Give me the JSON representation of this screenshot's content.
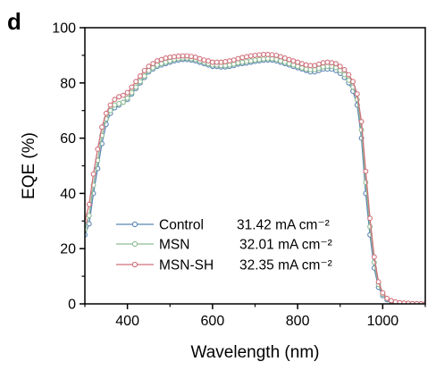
{
  "panel_label": "d",
  "colors": {
    "control": "#5b86b5",
    "msn": "#8fbc93",
    "msn_sh": "#d0707a"
  },
  "chart_data": {
    "type": "line",
    "xlabel": "Wavelength (nm)",
    "ylabel": "EQE (%)",
    "xlim": [
      300,
      1100
    ],
    "ylim": [
      0,
      100
    ],
    "xticks": [
      400,
      600,
      800,
      1000
    ],
    "yticks": [
      0,
      20,
      40,
      60,
      80,
      100
    ],
    "grid": false,
    "legend_position": "bottom-center",
    "series": [
      {
        "name": "Control",
        "annotation": "31.42 mA cm⁻²",
        "color": "#5b86b5",
        "x": [
          300,
          310,
          320,
          330,
          340,
          350,
          360,
          370,
          380,
          390,
          400,
          410,
          420,
          430,
          440,
          450,
          460,
          470,
          480,
          490,
          500,
          510,
          520,
          530,
          540,
          550,
          560,
          570,
          580,
          590,
          600,
          610,
          620,
          630,
          640,
          650,
          660,
          670,
          680,
          690,
          700,
          710,
          720,
          730,
          740,
          750,
          760,
          770,
          780,
          790,
          800,
          810,
          820,
          830,
          840,
          850,
          860,
          870,
          880,
          890,
          900,
          910,
          920,
          930,
          940,
          950,
          960,
          970,
          980,
          990,
          1000,
          1010,
          1020,
          1030,
          1040,
          1050,
          1060,
          1070,
          1080,
          1090,
          1100
        ],
        "values": [
          25,
          29,
          40,
          49,
          58,
          65,
          69,
          71,
          72,
          73,
          74,
          76,
          78,
          80,
          82,
          84,
          85,
          86,
          86.5,
          87,
          87.5,
          88,
          88.3,
          88.5,
          88.5,
          88.3,
          88,
          87.5,
          87,
          86.5,
          86,
          86,
          85.8,
          85.8,
          86,
          86.3,
          86.8,
          87,
          87.2,
          87.5,
          87.8,
          88,
          88.2,
          88.3,
          88.3,
          88,
          87.5,
          87,
          86.5,
          86,
          85.5,
          85,
          84.5,
          84,
          84,
          84.5,
          85,
          85,
          85,
          84.5,
          83.5,
          82,
          80,
          77,
          72,
          60,
          40,
          25,
          13,
          6,
          3,
          1.5,
          0.8,
          0.4,
          0.2,
          0.1,
          0.1,
          0,
          0,
          0,
          0
        ]
      },
      {
        "name": "MSN",
        "annotation": "32.01 mA cm⁻²",
        "color": "#8fbc93",
        "x": [
          300,
          310,
          320,
          330,
          340,
          350,
          360,
          370,
          380,
          390,
          400,
          410,
          420,
          430,
          440,
          450,
          460,
          470,
          480,
          490,
          500,
          510,
          520,
          530,
          540,
          550,
          560,
          570,
          580,
          590,
          600,
          610,
          620,
          630,
          640,
          650,
          660,
          670,
          680,
          690,
          700,
          710,
          720,
          730,
          740,
          750,
          760,
          770,
          780,
          790,
          800,
          810,
          820,
          830,
          840,
          850,
          860,
          870,
          880,
          890,
          900,
          910,
          920,
          930,
          940,
          950,
          960,
          970,
          980,
          990,
          1000,
          1010,
          1020,
          1030,
          1040,
          1050,
          1060,
          1070,
          1080,
          1090,
          1100
        ],
        "values": [
          27,
          32,
          43,
          52,
          61,
          67,
          70,
          72,
          72.5,
          73,
          74.5,
          76.5,
          78.5,
          80.5,
          82.5,
          84.5,
          85.5,
          86.5,
          87,
          87.5,
          88,
          88.5,
          88.8,
          89,
          89,
          88.8,
          88.5,
          88,
          87.5,
          87,
          86.5,
          86.5,
          86.3,
          86.3,
          86.5,
          86.8,
          87.3,
          87.5,
          87.8,
          88,
          88.3,
          88.5,
          88.7,
          88.8,
          88.8,
          88.5,
          88,
          87.5,
          87,
          86.5,
          86,
          85.5,
          85,
          84.8,
          84.8,
          85.3,
          85.8,
          86,
          86,
          85.5,
          84.5,
          83,
          81,
          78.5,
          74,
          63,
          44,
          28,
          15,
          7,
          3.5,
          1.8,
          1,
          0.5,
          0.3,
          0.2,
          0.1,
          0,
          0,
          0,
          0
        ]
      },
      {
        "name": "MSN-SH",
        "annotation": "32.35 mA cm⁻²",
        "color": "#d0707a",
        "x": [
          300,
          310,
          320,
          330,
          340,
          350,
          360,
          370,
          380,
          390,
          400,
          410,
          420,
          430,
          440,
          450,
          460,
          470,
          480,
          490,
          500,
          510,
          520,
          530,
          540,
          550,
          560,
          570,
          580,
          590,
          600,
          610,
          620,
          630,
          640,
          650,
          660,
          670,
          680,
          690,
          700,
          710,
          720,
          730,
          740,
          750,
          760,
          770,
          780,
          790,
          800,
          810,
          820,
          830,
          840,
          850,
          860,
          870,
          880,
          890,
          900,
          910,
          920,
          930,
          940,
          950,
          960,
          970,
          980,
          990,
          1000,
          1010,
          1020,
          1030,
          1040,
          1050,
          1060,
          1070,
          1080,
          1090,
          1100
        ],
        "values": [
          30,
          36,
          47,
          56,
          64,
          69,
          72,
          74,
          75,
          75.5,
          76.5,
          78.5,
          80.5,
          82.5,
          84.5,
          86,
          87,
          88,
          88.5,
          89,
          89.3,
          89.5,
          89.7,
          89.8,
          89.8,
          89.6,
          89.3,
          88.8,
          88.3,
          88,
          87.5,
          87.5,
          87.5,
          87.7,
          88,
          88.3,
          88.8,
          89.2,
          89.5,
          89.8,
          90,
          90.2,
          90.3,
          90.3,
          90.2,
          90,
          89.5,
          89,
          88.5,
          88,
          87.5,
          87,
          86.5,
          86.3,
          86.3,
          86.8,
          87.3,
          87.5,
          87.3,
          87,
          86,
          84.8,
          83,
          80.5,
          76,
          66,
          48,
          31,
          17,
          8,
          4,
          2,
          1.2,
          0.7,
          0.4,
          0.3,
          0.2,
          0.1,
          0.1,
          0,
          0
        ]
      }
    ]
  }
}
